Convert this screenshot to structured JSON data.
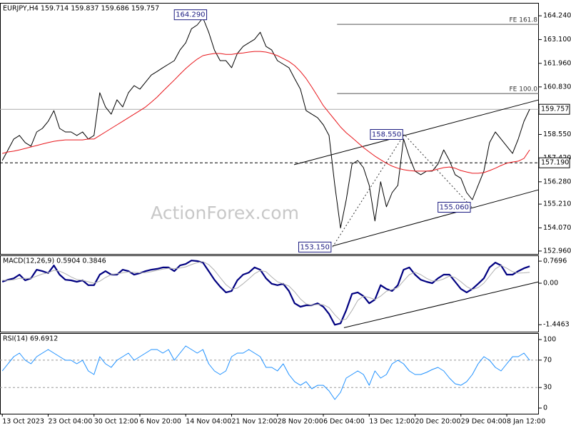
{
  "chart_data": [
    {
      "type": "line",
      "title": "EURJPY,H4  159.714 159.837 159.686 159.757",
      "x": [
        0,
        1,
        2,
        3,
        4,
        5,
        6,
        7,
        8,
        9,
        10,
        11,
        12,
        13,
        14,
        15,
        16,
        17,
        18,
        19,
        20,
        21,
        22,
        23,
        24,
        25,
        26,
        27,
        28,
        29,
        30,
        31,
        32,
        33,
        34,
        35,
        36,
        37,
        38,
        39,
        40,
        41,
        42,
        43,
        44,
        45,
        46,
        47,
        48,
        49,
        50,
        51,
        52,
        53,
        54,
        55,
        56,
        57,
        58,
        59,
        60,
        61,
        62,
        63,
        64,
        65,
        66,
        67,
        68,
        69,
        70,
        71,
        72,
        73,
        74,
        75,
        76,
        77,
        78,
        79,
        80,
        81,
        82,
        83,
        84,
        85,
        86,
        87,
        88,
        89,
        90,
        91,
        92
      ],
      "xlim": [
        -0.4,
        93.6
      ],
      "xticks": [
        {
          "value": 0,
          "label": "13 Oct 2023"
        },
        {
          "value": 8,
          "label": "23 Oct 04:00"
        },
        {
          "value": 16,
          "label": "30 Oct 12:00"
        },
        {
          "value": 24,
          "label": "6 Nov 20:00"
        },
        {
          "value": 32,
          "label": "14 Nov 04:00"
        },
        {
          "value": 40,
          "label": "21 Nov 12:00"
        },
        {
          "value": 48,
          "label": "28 Nov 20:00"
        },
        {
          "value": 56,
          "label": "6 Dec 04:00"
        },
        {
          "value": 64,
          "label": "13 Dec 12:00"
        },
        {
          "value": 72,
          "label": "20 Dec 20:00"
        },
        {
          "value": 80,
          "label": "29 Dec 04:00"
        },
        {
          "value": 88,
          "label": "8 Jan 12:00"
        }
      ],
      "ylim": [
        152.82,
        164.86
      ],
      "yticks": [
        {
          "value": 164.24,
          "label": "164.240"
        },
        {
          "value": 163.1,
          "label": "163.100"
        },
        {
          "value": 161.96,
          "label": "161.960"
        },
        {
          "value": 160.83,
          "label": "160.830"
        },
        {
          "value": 158.55,
          "label": "158.550"
        },
        {
          "value": 157.42,
          "label": "157.420"
        },
        {
          "value": 156.28,
          "label": "156.280"
        },
        {
          "value": 155.21,
          "label": "155.210"
        },
        {
          "value": 154.07,
          "label": "154.070"
        },
        {
          "value": 152.96,
          "label": "152.960"
        }
      ],
      "series": [
        {
          "color": "#000000",
          "values": [
            157.3,
            157.81,
            158.33,
            158.5,
            158.16,
            157.99,
            158.67,
            158.84,
            159.18,
            159.69,
            158.84,
            158.67,
            158.67,
            158.5,
            158.67,
            158.33,
            158.5,
            160.55,
            159.87,
            159.52,
            160.21,
            159.87,
            160.55,
            160.89,
            160.72,
            161.06,
            161.4,
            161.57,
            161.75,
            161.92,
            162.09,
            162.6,
            162.94,
            163.62,
            163.8,
            164.14,
            163.45,
            162.6,
            162.09,
            162.09,
            161.75,
            162.43,
            162.77,
            162.94,
            163.11,
            163.45,
            162.77,
            162.6,
            162.09,
            161.92,
            161.75,
            161.23,
            160.72,
            159.69,
            159.52,
            159.35,
            159.01,
            158.5,
            156.11,
            154.06,
            155.42,
            157.13,
            157.3,
            156.96,
            156.11,
            154.4,
            156.28,
            155.08,
            155.76,
            156.11,
            158.33,
            157.47,
            156.79,
            156.62,
            156.79,
            156.79,
            157.13,
            157.81,
            157.3,
            156.62,
            156.45,
            155.76,
            155.42,
            156.11,
            156.79,
            158.16,
            158.67,
            158.33,
            157.99,
            157.64,
            158.33,
            159.18,
            159.76
          ]
        },
        {
          "color": "#e8161b",
          "values": [
            157.64,
            157.71,
            157.75,
            157.81,
            157.88,
            157.95,
            158.02,
            158.09,
            158.16,
            158.22,
            158.26,
            158.29,
            158.29,
            158.29,
            158.29,
            158.33,
            158.33,
            158.5,
            158.67,
            158.84,
            159.01,
            159.18,
            159.35,
            159.52,
            159.69,
            159.87,
            160.1,
            160.34,
            160.62,
            160.89,
            161.16,
            161.44,
            161.71,
            161.95,
            162.16,
            162.33,
            162.39,
            162.43,
            162.43,
            162.39,
            162.39,
            162.43,
            162.46,
            162.5,
            162.53,
            162.53,
            162.5,
            162.43,
            162.33,
            162.19,
            162.05,
            161.85,
            161.57,
            161.23,
            160.82,
            160.38,
            159.93,
            159.59,
            159.25,
            158.91,
            158.63,
            158.4,
            158.16,
            157.92,
            157.71,
            157.51,
            157.34,
            157.17,
            157.03,
            156.93,
            156.86,
            156.82,
            156.79,
            156.79,
            156.79,
            156.82,
            156.89,
            156.96,
            156.99,
            156.93,
            156.82,
            156.75,
            156.69,
            156.69,
            156.72,
            156.82,
            156.93,
            157.06,
            157.17,
            157.23,
            157.27,
            157.4,
            157.81
          ]
        }
      ],
      "price_lines": [
        {
          "label": "159.757",
          "value": 159.757,
          "style": "solid"
        },
        {
          "label": "157.190",
          "value": 157.19,
          "style": "dashed"
        }
      ],
      "fib_levels": [
        {
          "label": "FE 161.8",
          "value": 163.83,
          "x": [
            58.4,
            93.6
          ]
        },
        {
          "label": "FE 100.0",
          "value": 160.51,
          "x": [
            58.4,
            93.6
          ]
        }
      ],
      "pivots": [
        {
          "label": "164.290",
          "x": 35.9,
          "value": 164.29,
          "zigzag": false
        },
        {
          "label": "153.150",
          "x": 57.6,
          "value": 153.15,
          "zigzag": true
        },
        {
          "label": "158.550",
          "x": 70.1,
          "value": 158.55,
          "zigzag": true
        },
        {
          "label": "155.060",
          "x": 81.9,
          "value": 155.06,
          "zigzag": true
        }
      ],
      "trendlines": [
        {
          "x": [
            50.9,
            93.6
          ],
          "values": [
            157.1,
            160.21
          ]
        },
        {
          "x": [
            57.6,
            93.6
          ],
          "values": [
            153.2,
            155.9
          ]
        }
      ],
      "watermark": "ActionForex.com"
    },
    {
      "type": "line",
      "title": "MACD(12,26,9) 0.5904 0.3846",
      "ylim": [
        -1.69,
        0.97
      ],
      "yticks": [
        0.7696,
        {
          "value": 0,
          "label": "0.00"
        },
        -1.4463
      ],
      "series": [
        {
          "color": "#000080",
          "values": [
            0.05,
            0.12,
            0.17,
            0.3,
            0.1,
            0.17,
            0.47,
            0.42,
            0.35,
            0.62,
            0.3,
            0.12,
            0.1,
            0.05,
            0.1,
            -0.07,
            -0.07,
            0.3,
            0.42,
            0.3,
            0.3,
            0.47,
            0.42,
            0.3,
            0.35,
            0.42,
            0.47,
            0.5,
            0.55,
            0.55,
            0.42,
            0.62,
            0.67,
            0.79,
            0.77,
            0.72,
            0.42,
            0.12,
            -0.12,
            -0.32,
            -0.27,
            0.1,
            0.3,
            0.37,
            0.55,
            0.47,
            0.17,
            -0.02,
            -0.07,
            -0.02,
            -0.27,
            -0.7,
            -0.82,
            -0.77,
            -0.77,
            -0.7,
            -0.82,
            -1.07,
            -1.45,
            -1.4,
            -0.94,
            -0.37,
            -0.32,
            -0.45,
            -0.7,
            -0.57,
            -0.07,
            -0.2,
            -0.27,
            -0.07,
            0.47,
            0.55,
            0.3,
            0.12,
            0.05,
            0.0,
            0.17,
            0.3,
            0.3,
            0.05,
            -0.2,
            -0.32,
            -0.2,
            -0.02,
            0.17,
            0.55,
            0.72,
            0.62,
            0.3,
            0.3,
            0.42,
            0.52,
            0.59
          ]
        },
        {
          "color": "#b0b0b0",
          "values": [
            0.1,
            0.1,
            0.12,
            0.17,
            0.17,
            0.17,
            0.25,
            0.32,
            0.36,
            0.45,
            0.42,
            0.33,
            0.22,
            0.13,
            0.1,
            0.05,
            0.0,
            0.07,
            0.2,
            0.3,
            0.33,
            0.36,
            0.39,
            0.38,
            0.36,
            0.37,
            0.4,
            0.45,
            0.49,
            0.52,
            0.51,
            0.53,
            0.57,
            0.65,
            0.72,
            0.75,
            0.65,
            0.45,
            0.2,
            -0.05,
            -0.2,
            -0.17,
            -0.02,
            0.15,
            0.33,
            0.44,
            0.4,
            0.22,
            0.05,
            -0.02,
            -0.1,
            -0.3,
            -0.55,
            -0.72,
            -0.77,
            -0.74,
            -0.75,
            -0.85,
            -1.1,
            -1.3,
            -1.25,
            -0.95,
            -0.6,
            -0.45,
            -0.5,
            -0.57,
            -0.45,
            -0.28,
            -0.22,
            -0.15,
            0.08,
            0.3,
            0.38,
            0.3,
            0.17,
            0.08,
            0.08,
            0.15,
            0.25,
            0.2,
            0.05,
            -0.12,
            -0.22,
            -0.15,
            0.0,
            0.25,
            0.5,
            0.62,
            0.52,
            0.4,
            0.35,
            0.36,
            0.38
          ]
        }
      ],
      "trendlines": [
        {
          "x": [
            59.6,
            93.6
          ],
          "values": [
            -1.55,
            0.05
          ]
        }
      ]
    },
    {
      "type": "line",
      "title": "RSI(14) 69.6912",
      "ylim": [
        -8.3,
        109.4
      ],
      "yticks": [
        0,
        30,
        70,
        100
      ],
      "levels": [
        30,
        70
      ],
      "series": [
        {
          "color": "#1e90ff",
          "values": [
            54.2,
            64.6,
            75.0,
            80.2,
            69.8,
            64.6,
            75.0,
            80.2,
            85.4,
            80.2,
            75.0,
            69.8,
            69.8,
            64.6,
            69.8,
            54.2,
            49.0,
            75.0,
            64.6,
            59.4,
            69.8,
            75.0,
            80.2,
            69.8,
            75.0,
            80.2,
            85.4,
            85.4,
            80.2,
            85.4,
            69.8,
            80.2,
            90.6,
            85.4,
            80.2,
            85.4,
            64.6,
            54.2,
            49.0,
            54.2,
            75.0,
            80.2,
            80.2,
            85.4,
            80.2,
            75.0,
            59.4,
            59.4,
            54.2,
            64.6,
            49.0,
            38.5,
            33.3,
            38.5,
            28.1,
            33.3,
            33.3,
            25.0,
            12.5,
            22.9,
            43.8,
            49.0,
            54.2,
            49.0,
            33.3,
            54.2,
            43.8,
            49.0,
            64.6,
            69.8,
            64.6,
            54.2,
            49.0,
            49.0,
            52.1,
            56.3,
            59.4,
            54.2,
            43.8,
            35.4,
            33.3,
            38.5,
            49.0,
            64.6,
            75.0,
            69.8,
            59.4,
            54.2,
            64.6,
            75.0,
            75.0,
            80.2,
            69.69
          ]
        }
      ]
    }
  ]
}
